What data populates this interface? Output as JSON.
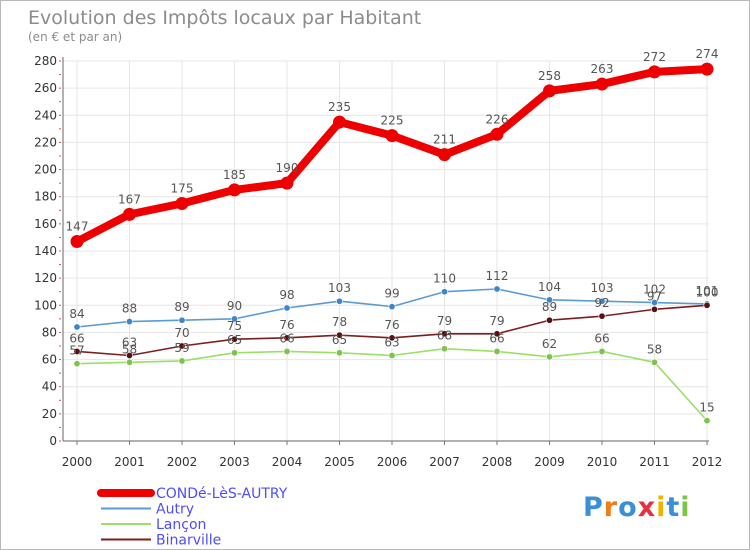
{
  "chart_data": {
    "type": "line",
    "title": "Evolution des Impôts locaux par Habitant",
    "subtitle": "(en € et par an)",
    "xlabel": "",
    "ylabel": "",
    "ylim": [
      0,
      280
    ],
    "ytick_step": 20,
    "grid": true,
    "legend_position": "bottom-left",
    "categories": [
      "2000",
      "2001",
      "2002",
      "2003",
      "2004",
      "2005",
      "2006",
      "2007",
      "2008",
      "2009",
      "2010",
      "2011",
      "2012"
    ],
    "series": [
      {
        "name": "CONDé-LèS-AUTRY",
        "color": "#ee0000",
        "emphasis": true,
        "values": [
          147,
          167,
          175,
          185,
          190,
          235,
          225,
          211,
          226,
          258,
          263,
          272,
          274
        ]
      },
      {
        "name": "Autry",
        "color": "#5b9bd5",
        "marker": "#3f86c8",
        "emphasis": false,
        "values": [
          84,
          88,
          89,
          90,
          98,
          103,
          99,
          110,
          112,
          104,
          103,
          102,
          101
        ]
      },
      {
        "name": "Lançon",
        "color": "#99e066",
        "marker": "#7cc44a",
        "emphasis": false,
        "values": [
          57,
          58,
          59,
          65,
          66,
          65,
          63,
          68,
          66,
          62,
          66,
          58,
          15
        ]
      },
      {
        "name": "Binarville",
        "color": "#7a1f1f",
        "marker": "#5a1010",
        "emphasis": false,
        "values": [
          66,
          63,
          70,
          75,
          76,
          78,
          76,
          79,
          79,
          89,
          92,
          97,
          100
        ]
      }
    ]
  },
  "brand": {
    "letters": [
      "P",
      "r",
      "o",
      "x",
      "i",
      "t",
      "i"
    ],
    "colors": [
      "#3a8fd9",
      "#f07d16",
      "#3a8fd9",
      "#e8303a",
      "#f0b400",
      "#3a8fd9",
      "#7cc44a"
    ]
  }
}
